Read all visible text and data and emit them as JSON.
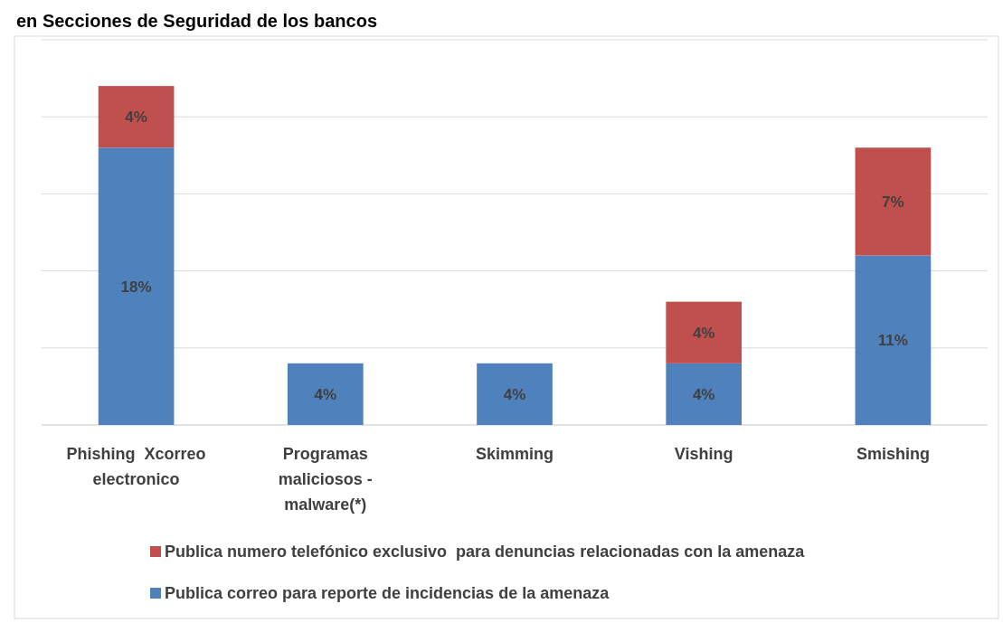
{
  "chart_data": {
    "type": "bar",
    "title": "en Secciones de Seguridad de los bancos",
    "stacked": true,
    "categories": [
      "Phishing  Xcorreo electronico",
      "Programas maliciosos - malware(*)",
      "Skimming",
      "Vishing",
      "Smishing"
    ],
    "series": [
      {
        "name": "Publica correo para reporte de incidencias de la amenaza",
        "color": "#4f81bd",
        "values": [
          18,
          4,
          4,
          4,
          11
        ],
        "value_labels": [
          "18%",
          "4%",
          "4%",
          "4%",
          "11%"
        ]
      },
      {
        "name": "Publica numero telefónico exclusivo  para denuncias relacionadas con la amenaza",
        "color": "#c0504d",
        "values": [
          4,
          null,
          null,
          4,
          7
        ],
        "value_labels": [
          "4%",
          null,
          null,
          "4%",
          "7%"
        ]
      }
    ],
    "ylim": [
      0,
      25
    ],
    "yticks": [
      {
        "value": 0,
        "label": null
      },
      {
        "value": 5,
        "label": null
      },
      {
        "value": 10,
        "label": null
      },
      {
        "value": 15,
        "label": null
      },
      {
        "value": 20,
        "label": null
      },
      {
        "value": 25,
        "label": null
      }
    ],
    "tick_labels": "x",
    "grid": "y",
    "legend": "bottom"
  }
}
